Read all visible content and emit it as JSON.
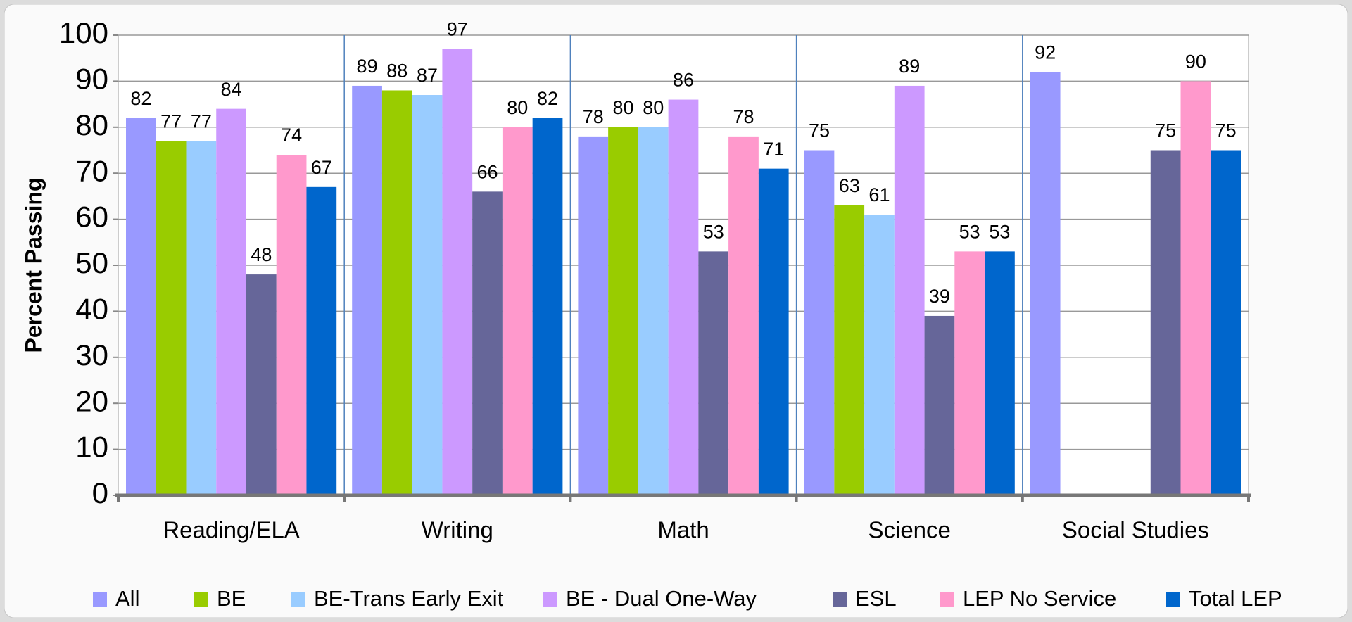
{
  "chart_data": {
    "type": "bar",
    "y_label": "Percent Passing",
    "categories": [
      "Reading/ELA",
      "Writing",
      "Math",
      "Science",
      "Social Studies"
    ],
    "series": [
      {
        "name": "All",
        "color": "#9999ff",
        "values": [
          82,
          89,
          78,
          75,
          92
        ]
      },
      {
        "name": "BE",
        "color": "#99cc00",
        "values": [
          77,
          88,
          80,
          63,
          null
        ]
      },
      {
        "name": "BE-Trans Early Exit",
        "color": "#99ccff",
        "values": [
          77,
          87,
          80,
          61,
          null
        ]
      },
      {
        "name": "BE - Dual One-Way",
        "color": "#cc99ff",
        "values": [
          84,
          97,
          86,
          89,
          null
        ]
      },
      {
        "name": "ESL",
        "color": "#666699",
        "values": [
          48,
          66,
          53,
          39,
          75
        ]
      },
      {
        "name": "LEP No Service",
        "color": "#ff99cc",
        "values": [
          74,
          80,
          78,
          53,
          90
        ]
      },
      {
        "name": "Total LEP",
        "color": "#0066cc",
        "values": [
          67,
          82,
          71,
          53,
          75
        ]
      }
    ],
    "ylim": [
      0,
      100
    ],
    "yticks": [
      0,
      10,
      20,
      30,
      40,
      50,
      60,
      70,
      80,
      90,
      100
    ],
    "grid": true,
    "legend": "bottom"
  }
}
